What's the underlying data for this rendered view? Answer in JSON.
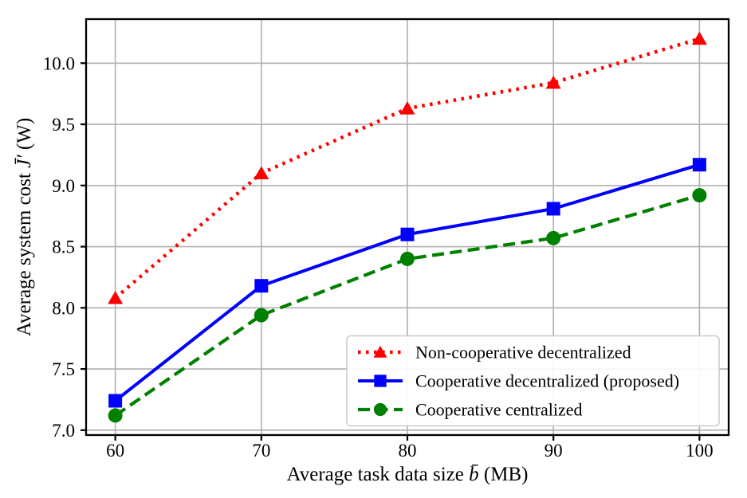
{
  "figure": {
    "background_color": "#ffffff",
    "plot_border_color": "#000000"
  },
  "chart_data": {
    "type": "line",
    "title": "",
    "xlabel": "Average task data size b̄ (MB)",
    "ylabel": "Average system cost J̄′ (W)",
    "xlabel_parts": {
      "prefix": "Average task data size ",
      "variable": "b̄",
      "suffix": " (MB)"
    },
    "ylabel_parts": {
      "prefix": "Average system cost ",
      "variable": "J̄′",
      "suffix": " (W)"
    },
    "x": [
      60,
      70,
      80,
      90,
      100
    ],
    "x_tick_labels": [
      "60",
      "70",
      "80",
      "90",
      "100"
    ],
    "y_ticks": [
      7.0,
      7.5,
      8.0,
      8.5,
      9.0,
      9.5,
      10.0
    ],
    "y_tick_labels": [
      "7.0",
      "7.5",
      "8.0",
      "8.5",
      "9.0",
      "9.5",
      "10.0"
    ],
    "xlim": [
      58,
      102
    ],
    "ylim": [
      6.96,
      10.36
    ],
    "grid": true,
    "grid_color": "#b0b0b0",
    "legend_position": "lower right",
    "series": [
      {
        "name": "Non-cooperative decentralized",
        "color": "#ff0000",
        "line_style": "dotted",
        "marker": "triangle",
        "values": [
          8.08,
          9.1,
          9.63,
          9.84,
          10.2
        ]
      },
      {
        "name": "Cooperative decentralized (proposed)",
        "color": "#0000ff",
        "line_style": "solid",
        "marker": "square",
        "values": [
          7.24,
          8.18,
          8.6,
          8.81,
          9.17
        ]
      },
      {
        "name": "Cooperative centralized",
        "color": "#008000",
        "line_style": "dashed",
        "marker": "circle",
        "values": [
          7.12,
          7.94,
          8.4,
          8.57,
          8.92
        ]
      }
    ]
  }
}
